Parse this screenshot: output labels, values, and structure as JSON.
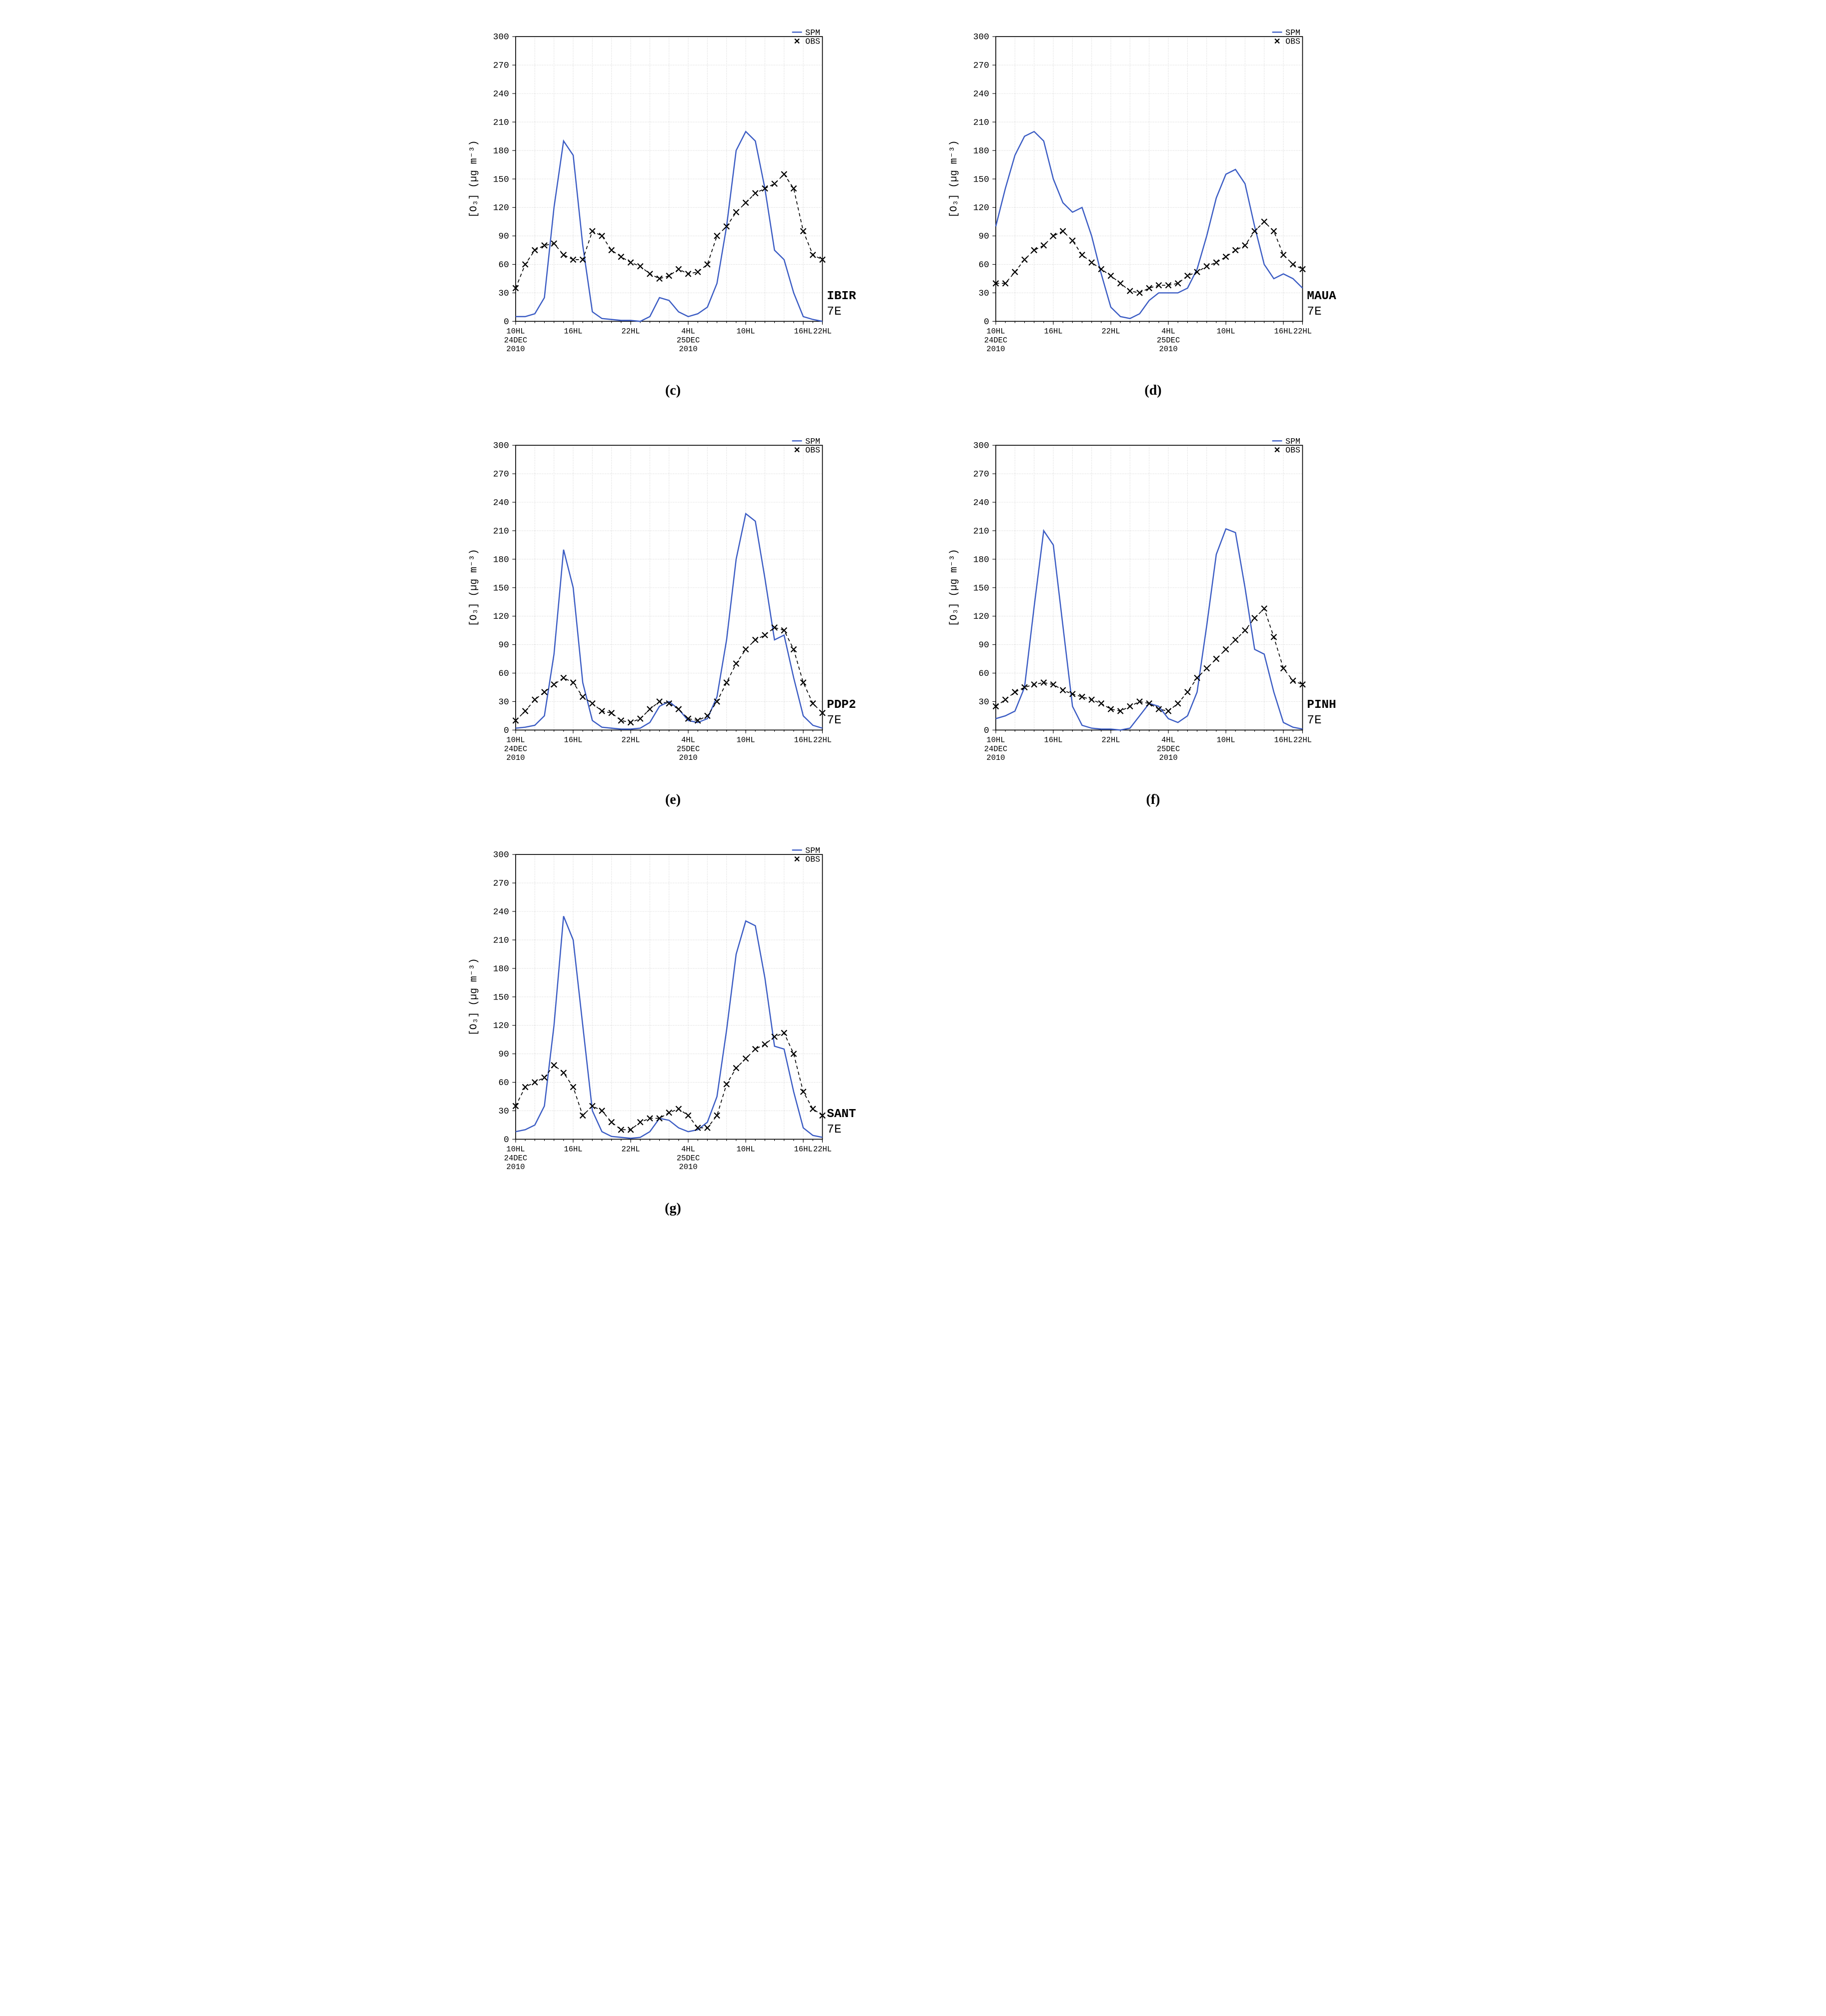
{
  "page": {
    "background": "#ffffff"
  },
  "common": {
    "ylabel": "[O₃] (µg m⁻³)",
    "ylim": [
      0,
      300
    ],
    "ytick_step": 30,
    "yticks": [
      0,
      30,
      60,
      90,
      120,
      150,
      180,
      210,
      240,
      270,
      300
    ],
    "x_hours": [
      10,
      12,
      14,
      16,
      18,
      20,
      22,
      0,
      2,
      4,
      6,
      8,
      10,
      12,
      14,
      16,
      18,
      20,
      22
    ],
    "x_major_labels": [
      "10HL",
      "16HL",
      "22HL",
      "4HL",
      "10HL",
      "16HL",
      "22HL"
    ],
    "x_major_idx": [
      0,
      3,
      6,
      9,
      12,
      15,
      18
    ],
    "x_date_lines": [
      {
        "idx": 0,
        "lines": [
          "10HL",
          "24DEC",
          "2010"
        ]
      },
      {
        "idx": 9,
        "lines": [
          "4HL",
          "25DEC",
          "2010"
        ]
      }
    ],
    "legend": {
      "spm": "SPM",
      "obs": "OBS",
      "spm_color": "#3b5cc4",
      "obs_color": "#000000"
    },
    "grid_color": "#cccccc",
    "axis_color": "#000000",
    "background_color": "#ffffff",
    "spm_line_width": 2.2,
    "obs_line_width": 1.5,
    "obs_marker": "x",
    "obs_dash": "6 5",
    "font_family": "Courier New",
    "tick_fontsize": 16,
    "label_fontsize": 18,
    "station_fontsize": 22,
    "caption_fontsize": 28
  },
  "panels": [
    {
      "id": "c",
      "caption": "(c)",
      "station": "IBIR",
      "scenario": "7E",
      "spm": [
        5,
        5,
        8,
        25,
        120,
        190,
        175,
        80,
        10,
        3,
        2,
        1,
        1,
        0,
        5,
        25,
        22,
        10,
        5,
        8,
        15,
        40,
        100,
        180,
        200,
        190,
        140,
        75,
        65,
        30,
        5,
        2,
        0
      ],
      "obs": [
        35,
        60,
        75,
        80,
        82,
        70,
        65,
        65,
        95,
        90,
        75,
        68,
        62,
        58,
        50,
        45,
        48,
        55,
        50,
        52,
        60,
        90,
        100,
        115,
        125,
        135,
        140,
        145,
        155,
        140,
        95,
        70,
        65
      ],
      "n": 33
    },
    {
      "id": "d",
      "caption": "(d)",
      "station": "MAUA",
      "scenario": "7E",
      "spm": [
        100,
        140,
        175,
        195,
        200,
        190,
        150,
        125,
        115,
        120,
        90,
        50,
        15,
        5,
        3,
        8,
        22,
        30,
        30,
        30,
        35,
        55,
        90,
        130,
        155,
        160,
        145,
        100,
        60,
        45,
        50,
        45,
        35
      ],
      "obs": [
        40,
        40,
        52,
        65,
        75,
        80,
        90,
        95,
        85,
        70,
        62,
        55,
        48,
        40,
        32,
        30,
        35,
        38,
        38,
        40,
        48,
        52,
        58,
        62,
        68,
        75,
        80,
        95,
        105,
        95,
        70,
        60,
        55
      ],
      "n": 33
    },
    {
      "id": "e",
      "caption": "(e)",
      "station": "PDP2",
      "scenario": "7E",
      "spm": [
        2,
        3,
        5,
        15,
        80,
        190,
        150,
        50,
        10,
        3,
        2,
        1,
        1,
        2,
        8,
        25,
        30,
        22,
        10,
        8,
        12,
        35,
        95,
        180,
        228,
        220,
        160,
        95,
        100,
        55,
        15,
        5,
        2
      ],
      "obs": [
        10,
        20,
        32,
        40,
        48,
        55,
        50,
        35,
        28,
        20,
        18,
        10,
        8,
        12,
        22,
        30,
        28,
        22,
        12,
        10,
        15,
        30,
        50,
        70,
        85,
        95,
        100,
        108,
        105,
        85,
        50,
        28,
        18
      ],
      "n": 33
    },
    {
      "id": "f",
      "caption": "(f)",
      "station": "PINH",
      "scenario": "7E",
      "spm": [
        12,
        15,
        20,
        45,
        130,
        210,
        195,
        110,
        25,
        5,
        2,
        1,
        1,
        0,
        2,
        15,
        28,
        25,
        12,
        8,
        15,
        40,
        110,
        185,
        212,
        208,
        150,
        85,
        80,
        40,
        8,
        3,
        1
      ],
      "obs": [
        25,
        32,
        40,
        45,
        48,
        50,
        48,
        42,
        38,
        35,
        32,
        28,
        22,
        20,
        25,
        30,
        28,
        22,
        20,
        28,
        40,
        55,
        65,
        75,
        85,
        95,
        105,
        118,
        128,
        98,
        65,
        52,
        48
      ],
      "n": 33
    },
    {
      "id": "g",
      "caption": "(g)",
      "station": "SANT",
      "scenario": "7E",
      "spm": [
        8,
        10,
        15,
        35,
        120,
        235,
        210,
        120,
        30,
        8,
        3,
        2,
        1,
        2,
        8,
        22,
        20,
        12,
        8,
        10,
        18,
        45,
        115,
        195,
        230,
        225,
        170,
        98,
        95,
        50,
        12,
        4,
        2
      ],
      "obs": [
        35,
        55,
        60,
        65,
        78,
        70,
        55,
        25,
        35,
        30,
        18,
        10,
        10,
        18,
        22,
        22,
        28,
        32,
        25,
        12,
        12,
        25,
        58,
        75,
        85,
        95,
        100,
        108,
        112,
        90,
        50,
        32,
        25
      ],
      "n": 33
    }
  ]
}
